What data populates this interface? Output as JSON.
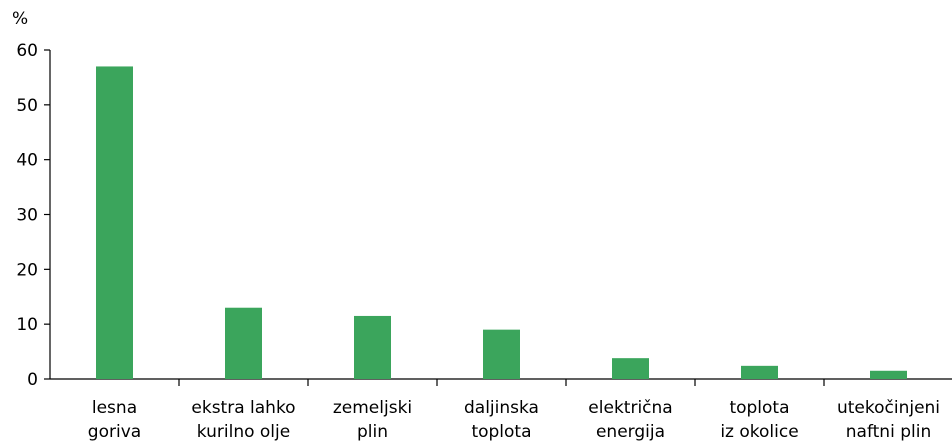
{
  "chart_data": {
    "type": "bar",
    "y_label": "%",
    "categories": [
      "lesna\ngoriva",
      "ekstra lahko\nkurilno olje",
      "zemeljski\nplin",
      "daljinska\ntoplota",
      "električna\nenergija",
      "toplota\niz okolice",
      "utekočinjeni\nnaftni plin"
    ],
    "values": [
      57,
      13,
      11.5,
      9,
      3.8,
      2.4,
      1.5
    ],
    "color": "#3ba55c",
    "ylim": [
      0,
      60
    ],
    "yticks": [
      0,
      10,
      20,
      30,
      40,
      50,
      60
    ],
    "grid": false
  }
}
